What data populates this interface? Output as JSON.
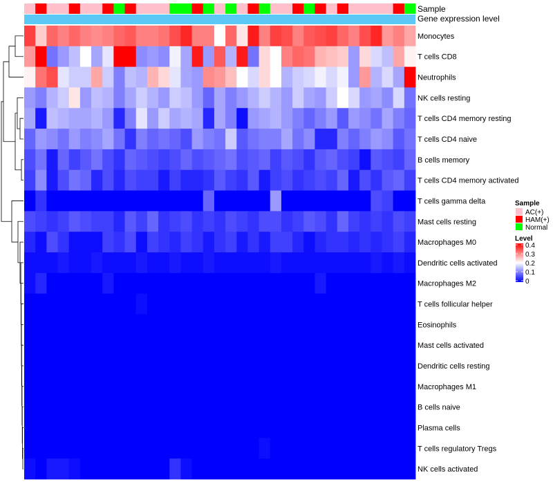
{
  "chart_data": {
    "type": "heatmap",
    "title": "",
    "annotation_labels": {
      "sample": "Sample",
      "gene": "Gene expression level"
    },
    "rows": [
      "Monocytes",
      "T cells CD8",
      "Neutrophils",
      "NK cells resting",
      "T cells CD4 memory resting",
      "T cells CD4 naive",
      "B cells memory",
      "T cells CD4 memory activated",
      "T cells gamma delta",
      "Mast cells resting",
      "Macrophages M0",
      "Dendritic cells activated",
      "Macrophages M2",
      "T cells follicular helper",
      "Eosinophils",
      "Mast cells activated",
      "Dendritic cells resting",
      "Macrophages M1",
      "B cells naive",
      "Plasma cells",
      "T cells regulatory  Tregs",
      "NK cells activated"
    ],
    "sample_groups": [
      "AC(+)",
      "HAM(+)",
      "AC(+)",
      "AC(+)",
      "HAM(+)",
      "AC(+)",
      "AC(+)",
      "HAM(+)",
      "Normal",
      "HAM(+)",
      "AC(+)",
      "AC(+)",
      "AC(+)",
      "Normal",
      "Normal",
      "HAM(+)",
      "Normal",
      "AC(+)",
      "Normal",
      "AC(+)",
      "HAM(+)",
      "Normal",
      "AC(+)",
      "AC(+)",
      "HAM(+)",
      "Normal",
      "HAM(+)",
      "AC(+)",
      "HAM(+)",
      "AC(+)",
      "AC(+)",
      "AC(+)",
      "AC(+)",
      "HAM(+)",
      "Normal"
    ],
    "values": [
      [
        0.35,
        0.24,
        0.32,
        0.3,
        0.32,
        0.3,
        0.29,
        0.3,
        0.32,
        0.33,
        0.3,
        0.3,
        0.31,
        0.34,
        0.37,
        0.3,
        0.3,
        0.2,
        0.32,
        0.22,
        0.38,
        0.3,
        0.35,
        0.34,
        0.3,
        0.33,
        0.34,
        0.35,
        0.32,
        0.3,
        0.34,
        0.37,
        0.28,
        0.3,
        0.27
      ],
      [
        0.28,
        0.4,
        0.09,
        0.12,
        0.15,
        0.2,
        0.13,
        0.18,
        0.4,
        0.4,
        0.11,
        0.12,
        0.11,
        0.19,
        0.13,
        0.38,
        0.12,
        0.33,
        0.14,
        0.38,
        0.09,
        0.23,
        0.2,
        0.3,
        0.32,
        0.31,
        0.26,
        0.25,
        0.24,
        0.12,
        0.23,
        0.17,
        0.15,
        0.27,
        0.21
      ],
      [
        0.21,
        0.31,
        0.34,
        0.18,
        0.16,
        0.16,
        0.27,
        0.16,
        0.1,
        0.15,
        0.14,
        0.26,
        0.23,
        0.18,
        0.13,
        0.12,
        0.29,
        0.28,
        0.25,
        0.2,
        0.17,
        0.23,
        0.2,
        0.14,
        0.16,
        0.17,
        0.19,
        0.17,
        0.19,
        0.12,
        0.28,
        0.14,
        0.17,
        0.13,
        0.42
      ],
      [
        0.12,
        0.1,
        0.14,
        0.16,
        0.22,
        0.12,
        0.15,
        0.14,
        0.1,
        0.13,
        0.16,
        0.14,
        0.12,
        0.16,
        0.15,
        0.12,
        0.08,
        0.13,
        0.1,
        0.12,
        0.14,
        0.16,
        0.14,
        0.12,
        0.16,
        0.13,
        0.12,
        0.16,
        0.2,
        0.17,
        0.12,
        0.13,
        0.11,
        0.17,
        0.09
      ],
      [
        0.13,
        0.02,
        0.15,
        0.14,
        0.13,
        0.13,
        0.14,
        0.12,
        0.03,
        0.1,
        0.18,
        0.12,
        0.16,
        0.13,
        0.14,
        0.13,
        0.03,
        0.13,
        0.1,
        0.01,
        0.12,
        0.13,
        0.14,
        0.12,
        0.1,
        0.08,
        0.1,
        0.12,
        0.07,
        0.12,
        0.11,
        0.09,
        0.13,
        0.1,
        0.08
      ],
      [
        0.08,
        0.12,
        0.11,
        0.09,
        0.12,
        0.1,
        0.11,
        0.13,
        0.09,
        0.04,
        0.1,
        0.08,
        0.09,
        0.08,
        0.06,
        0.12,
        0.1,
        0.09,
        0.16,
        0.07,
        0.09,
        0.1,
        0.1,
        0.13,
        0.09,
        0.11,
        0.03,
        0.03,
        0.1,
        0.08,
        0.1,
        0.12,
        0.11,
        0.07,
        0.09
      ],
      [
        0.06,
        0.09,
        0.02,
        0.08,
        0.05,
        0.07,
        0.09,
        0.06,
        0.04,
        0.08,
        0.07,
        0.06,
        0.05,
        0.06,
        0.08,
        0.06,
        0.07,
        0.08,
        0.09,
        0.06,
        0.07,
        0.08,
        0.05,
        0.07,
        0.06,
        0.04,
        0.07,
        0.08,
        0.06,
        0.05,
        0.01,
        0.07,
        0.06,
        0.05,
        0.08
      ],
      [
        0.05,
        0.11,
        0.02,
        0.06,
        0.09,
        0.08,
        0.03,
        0.06,
        0.03,
        0.06,
        0.05,
        0.05,
        0.02,
        0.05,
        0.03,
        0.03,
        0.04,
        0.07,
        0.05,
        0.04,
        0.07,
        0.02,
        0.05,
        0.06,
        0.04,
        0.05,
        0.06,
        0.05,
        0.08,
        0.02,
        0.06,
        0.04,
        0.07,
        0.08,
        0.05
      ],
      [
        0.0,
        0.04,
        0.0,
        0.0,
        0.0,
        0.0,
        0.0,
        0.0,
        0.0,
        0.0,
        0.0,
        0.0,
        0.0,
        0.0,
        0.0,
        0.0,
        0.08,
        0.0,
        0.0,
        0.0,
        0.0,
        0.0,
        0.12,
        0.0,
        0.0,
        0.0,
        0.0,
        0.0,
        0.0,
        0.0,
        0.0,
        0.06,
        0.05,
        0.0,
        0.0
      ],
      [
        0.06,
        0.05,
        0.04,
        0.05,
        0.07,
        0.06,
        0.05,
        0.05,
        0.03,
        0.07,
        0.05,
        0.08,
        0.04,
        0.05,
        0.06,
        0.04,
        0.05,
        0.04,
        0.06,
        0.05,
        0.04,
        0.06,
        0.06,
        0.04,
        0.05,
        0.07,
        0.06,
        0.04,
        0.08,
        0.05,
        0.04,
        0.05,
        0.04,
        0.06,
        0.05
      ],
      [
        0.03,
        0.01,
        0.06,
        0.04,
        0.01,
        0.01,
        0.01,
        0.05,
        0.04,
        0.06,
        0.01,
        0.05,
        0.04,
        0.03,
        0.05,
        0.04,
        0.02,
        0.04,
        0.05,
        0.02,
        0.04,
        0.02,
        0.05,
        0.05,
        0.03,
        0.01,
        0.03,
        0.04,
        0.04,
        0.03,
        0.04,
        0.03,
        0.04,
        0.05,
        0.03
      ],
      [
        0.01,
        0.01,
        0.01,
        0.02,
        0.01,
        0.01,
        0.02,
        0.01,
        0.01,
        0.01,
        0.02,
        0.01,
        0.01,
        0.02,
        0.01,
        0.01,
        0.02,
        0.01,
        0.01,
        0.01,
        0.01,
        0.01,
        0.02,
        0.01,
        0.01,
        0.01,
        0.01,
        0.01,
        0.01,
        0.01,
        0.01,
        0.02,
        0.01,
        0.02,
        0.01
      ],
      [
        0.01,
        0.03,
        0.0,
        0.0,
        0.0,
        0.0,
        0.0,
        0.02,
        0.0,
        0.0,
        0.0,
        0.0,
        0.0,
        0.0,
        0.0,
        0.0,
        0.0,
        0.0,
        0.0,
        0.0,
        0.0,
        0.0,
        0.0,
        0.0,
        0.0,
        0.0,
        0.02,
        0.0,
        0.0,
        0.0,
        0.0,
        0.0,
        0.0,
        0.0,
        0.0
      ],
      [
        0.0,
        0.0,
        0.0,
        0.0,
        0.0,
        0.0,
        0.0,
        0.0,
        0.0,
        0.0,
        0.01,
        0.0,
        0.0,
        0.0,
        0.0,
        0.0,
        0.0,
        0.0,
        0.0,
        0.0,
        0.0,
        0.0,
        0.0,
        0.0,
        0.0,
        0.0,
        0.0,
        0.0,
        0.0,
        0.0,
        0.0,
        0.0,
        0.0,
        0.0,
        0.0
      ],
      [
        0.0,
        0.0,
        0.0,
        0.0,
        0.0,
        0.0,
        0.0,
        0.0,
        0.0,
        0.0,
        0.0,
        0.0,
        0.0,
        0.0,
        0.0,
        0.0,
        0.0,
        0.0,
        0.0,
        0.0,
        0.0,
        0.0,
        0.0,
        0.0,
        0.0,
        0.0,
        0.0,
        0.0,
        0.0,
        0.0,
        0.0,
        0.0,
        0.0,
        0.0,
        0.0
      ],
      [
        0.0,
        0.0,
        0.0,
        0.0,
        0.0,
        0.0,
        0.0,
        0.0,
        0.0,
        0.0,
        0.0,
        0.0,
        0.0,
        0.0,
        0.0,
        0.0,
        0.0,
        0.0,
        0.0,
        0.0,
        0.0,
        0.0,
        0.0,
        0.0,
        0.0,
        0.0,
        0.0,
        0.0,
        0.0,
        0.0,
        0.0,
        0.0,
        0.0,
        0.0,
        0.0
      ],
      [
        0.0,
        0.0,
        0.0,
        0.0,
        0.0,
        0.0,
        0.0,
        0.0,
        0.0,
        0.0,
        0.0,
        0.0,
        0.0,
        0.0,
        0.0,
        0.0,
        0.0,
        0.0,
        0.0,
        0.0,
        0.0,
        0.0,
        0.0,
        0.0,
        0.0,
        0.0,
        0.0,
        0.0,
        0.0,
        0.0,
        0.0,
        0.0,
        0.0,
        0.0,
        0.0
      ],
      [
        0.0,
        0.0,
        0.0,
        0.0,
        0.0,
        0.0,
        0.0,
        0.0,
        0.0,
        0.0,
        0.0,
        0.0,
        0.0,
        0.0,
        0.0,
        0.0,
        0.0,
        0.0,
        0.0,
        0.0,
        0.0,
        0.0,
        0.0,
        0.0,
        0.0,
        0.0,
        0.0,
        0.0,
        0.0,
        0.0,
        0.0,
        0.0,
        0.0,
        0.0,
        0.0
      ],
      [
        0.0,
        0.0,
        0.0,
        0.0,
        0.0,
        0.0,
        0.0,
        0.0,
        0.0,
        0.0,
        0.0,
        0.0,
        0.0,
        0.0,
        0.0,
        0.0,
        0.0,
        0.0,
        0.0,
        0.0,
        0.0,
        0.0,
        0.0,
        0.0,
        0.0,
        0.0,
        0.0,
        0.0,
        0.0,
        0.0,
        0.0,
        0.0,
        0.0,
        0.0,
        0.0
      ],
      [
        0.0,
        0.0,
        0.0,
        0.0,
        0.0,
        0.0,
        0.0,
        0.0,
        0.0,
        0.0,
        0.0,
        0.0,
        0.0,
        0.0,
        0.0,
        0.0,
        0.0,
        0.0,
        0.0,
        0.0,
        0.0,
        0.0,
        0.0,
        0.0,
        0.0,
        0.0,
        0.0,
        0.0,
        0.0,
        0.0,
        0.0,
        0.0,
        0.0,
        0.0,
        0.0
      ],
      [
        0.0,
        0.0,
        0.0,
        0.0,
        0.0,
        0.0,
        0.0,
        0.0,
        0.0,
        0.0,
        0.0,
        0.0,
        0.0,
        0.0,
        0.0,
        0.0,
        0.0,
        0.0,
        0.0,
        0.0,
        0.0,
        0.01,
        0.0,
        0.0,
        0.0,
        0.0,
        0.0,
        0.0,
        0.0,
        0.0,
        0.0,
        0.0,
        0.0,
        0.0,
        0.0
      ],
      [
        0.01,
        0.0,
        0.02,
        0.02,
        0.01,
        0.0,
        0.0,
        0.0,
        0.0,
        0.0,
        0.0,
        0.0,
        0.0,
        0.04,
        0.01,
        0.0,
        0.0,
        0.0,
        0.0,
        0.0,
        0.0,
        0.0,
        0.0,
        0.0,
        0.0,
        0.0,
        0.0,
        0.0,
        0.0,
        0.0,
        0.0,
        0.0,
        0.0,
        0.0,
        0.0
      ]
    ],
    "color_scale": {
      "min": 0,
      "max": 0.4,
      "low": "#0000ff",
      "mid": "#ffffff",
      "mid_value": 0.2,
      "high": "#ff0000"
    },
    "legend": {
      "sample_title": "Sample",
      "sample_entries": [
        {
          "label": "AC(+)",
          "color": "#ffc0cb"
        },
        {
          "label": "HAM(+)",
          "color": "#ff0000"
        },
        {
          "label": "Normal",
          "color": "#00ff00"
        }
      ],
      "level_title": "Level",
      "level_ticks": [
        "0.4",
        "0.3",
        "0.2",
        "0.1",
        "0"
      ],
      "placement": "right"
    },
    "gene_bar_color": "#5bc8f5"
  }
}
